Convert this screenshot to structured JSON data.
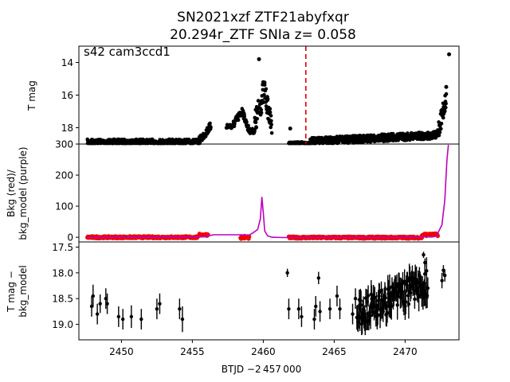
{
  "figure": {
    "title_line1": "SN2021xzf  ZTF21abyfxqr",
    "title_line2": "20.294r_ZTF SNIa z= 0.058",
    "annotation": "s42 cam3ccd1",
    "xlabel": "BTJD −2 457 000"
  },
  "colors": {
    "data": "#000000",
    "bkg": "#ff0000",
    "model": "#bf00bf",
    "marker": "#dd0000"
  },
  "chart_data": [
    {
      "type": "scatter",
      "name": "tmag_panel",
      "ylabel": "T mag",
      "xlim": [
        2447.0,
        2473.8
      ],
      "ylim": [
        19.0,
        13.0
      ],
      "y_inverted": true,
      "xticks": [
        2450,
        2455,
        2460,
        2465,
        2470
      ],
      "yticks": [
        14,
        16,
        18
      ],
      "vertical_marker_x": 2463.0,
      "segments": [
        {
          "x_start": 2447.6,
          "x_end": 2455.5,
          "y_base": 18.88,
          "y_spread": 0.35
        },
        {
          "x_start": 2455.5,
          "x_end": 2456.3,
          "y_start": 18.8,
          "y_end": 17.9,
          "y_spread": 0.5
        },
        {
          "x_start": 2457.4,
          "x_end": 2457.9,
          "y_base": 17.9,
          "y_spread": 0.3
        },
        {
          "x_start": 2457.9,
          "x_end": 2458.6,
          "y_start": 17.8,
          "y_end": 16.9,
          "y_spread": 0.5
        },
        {
          "x_start": 2458.6,
          "x_end": 2459.0,
          "y_start": 17.2,
          "y_end": 18.2,
          "y_spread": 0.4
        },
        {
          "x_start": 2459.0,
          "x_end": 2459.4,
          "y_base": 18.2,
          "y_spread": 0.3
        },
        {
          "x_start": 2459.4,
          "x_end": 2460.1,
          "y_start": 17.8,
          "y_end": 15.6,
          "y_spread": 1.6
        },
        {
          "x_start": 2460.1,
          "x_end": 2460.6,
          "y_start": 15.8,
          "y_end": 18.0,
          "y_spread": 1.2
        },
        {
          "x_start": 2461.8,
          "x_end": 2463.3,
          "y_base": 18.95,
          "y_spread": 0.15
        },
        {
          "x_start": 2463.3,
          "x_end": 2472.3,
          "y_start": 18.85,
          "y_end": 18.45,
          "y_spread": 0.45
        },
        {
          "x_start": 2472.3,
          "x_end": 2472.9,
          "y_start": 18.3,
          "y_end": 16.2,
          "y_spread": 1.2
        }
      ],
      "outliers": [
        {
          "x": 2459.7,
          "y": 13.8
        },
        {
          "x": 2461.9,
          "y": 18.05
        },
        {
          "x": 2472.9,
          "y": 15.5
        },
        {
          "x": 2473.1,
          "y": 13.5
        }
      ]
    },
    {
      "type": "line",
      "name": "background_panel",
      "ylabel_line1": "Bkg (red)/",
      "ylabel_line2": "bkg_model (purple)",
      "xlim": [
        2447.0,
        2473.8
      ],
      "ylim": [
        -15,
        300
      ],
      "yticks": [
        0,
        100,
        200,
        300
      ],
      "series": [
        {
          "name": "bkg_model",
          "x": [
            2447.6,
            2452.0,
            2455.0,
            2455.8,
            2456.5,
            2457.5,
            2458.2,
            2459.0,
            2459.3,
            2459.6,
            2459.8,
            2459.9,
            2460.0,
            2460.1,
            2460.3,
            2460.6,
            2461.5,
            2465.0,
            2470.0,
            2472.2,
            2472.6,
            2472.8,
            2472.95,
            2473.05
          ],
          "values": [
            -1,
            0,
            1,
            2,
            8,
            8,
            8,
            7,
            15,
            25,
            60,
            130,
            80,
            20,
            5,
            0,
            -1,
            -1,
            -1,
            3,
            40,
            120,
            250,
            310
          ]
        }
      ],
      "bkg_points": {
        "segments": [
          {
            "x_start": 2447.6,
            "x_end": 2455.4,
            "y_base": 0,
            "y_spread": 6
          },
          {
            "x_start": 2455.5,
            "x_end": 2456.1,
            "y_base": 8,
            "y_spread": 6
          },
          {
            "x_start": 2458.4,
            "x_end": 2459.0,
            "y_base": 0,
            "y_spread": 10
          },
          {
            "x_start": 2461.8,
            "x_end": 2471.2,
            "y_base": -1,
            "y_spread": 6
          },
          {
            "x_start": 2471.2,
            "x_end": 2472.3,
            "y_base": 8,
            "y_spread": 8
          }
        ]
      }
    },
    {
      "type": "scatter",
      "name": "diff_panel",
      "ylabel_line1": "T mag −",
      "ylabel_line2": "bkg_model",
      "xlim": [
        2447.0,
        2473.8
      ],
      "ylim": [
        19.3,
        17.4
      ],
      "y_inverted": true,
      "yticks": [
        17.5,
        18.0,
        18.5,
        19.0
      ],
      "points": [
        {
          "x": 2447.9,
          "y": 18.65,
          "err": 0.2
        },
        {
          "x": 2448.0,
          "y": 18.45,
          "err": 0.22
        },
        {
          "x": 2448.3,
          "y": 18.8,
          "err": 0.2
        },
        {
          "x": 2448.5,
          "y": 18.6,
          "err": 0.18
        },
        {
          "x": 2448.9,
          "y": 18.5,
          "err": 0.2
        },
        {
          "x": 2449.0,
          "y": 18.6,
          "err": 0.2
        },
        {
          "x": 2449.8,
          "y": 18.85,
          "err": 0.2
        },
        {
          "x": 2450.1,
          "y": 18.9,
          "err": 0.2
        },
        {
          "x": 2450.7,
          "y": 18.85,
          "err": 0.22
        },
        {
          "x": 2451.4,
          "y": 18.9,
          "err": 0.2
        },
        {
          "x": 2452.5,
          "y": 18.7,
          "err": 0.2
        },
        {
          "x": 2452.7,
          "y": 18.6,
          "err": 0.2
        },
        {
          "x": 2454.1,
          "y": 18.7,
          "err": 0.2
        },
        {
          "x": 2454.3,
          "y": 18.9,
          "err": 0.25
        },
        {
          "x": 2461.7,
          "y": 18.0,
          "err": 0.08
        },
        {
          "x": 2461.8,
          "y": 18.7,
          "err": 0.2
        },
        {
          "x": 2462.5,
          "y": 18.7,
          "err": 0.2
        },
        {
          "x": 2462.7,
          "y": 18.85,
          "err": 0.2
        },
        {
          "x": 2463.6,
          "y": 18.9,
          "err": 0.2
        },
        {
          "x": 2463.7,
          "y": 18.65,
          "err": 0.2
        },
        {
          "x": 2463.9,
          "y": 18.1,
          "err": 0.12
        },
        {
          "x": 2464.0,
          "y": 18.75,
          "err": 0.2
        },
        {
          "x": 2464.7,
          "y": 18.7,
          "err": 0.2
        },
        {
          "x": 2465.2,
          "y": 18.45,
          "err": 0.2
        },
        {
          "x": 2465.4,
          "y": 18.7,
          "err": 0.2
        },
        {
          "x": 2466.3,
          "y": 18.8,
          "err": 0.2
        },
        {
          "x": 2466.5,
          "y": 18.5,
          "err": 0.2
        },
        {
          "x": 2471.3,
          "y": 17.65,
          "err": 0.06
        },
        {
          "x": 2471.4,
          "y": 17.8,
          "err": 0.08
        },
        {
          "x": 2472.6,
          "y": 18.15,
          "err": 0.15
        },
        {
          "x": 2472.7,
          "y": 17.95,
          "err": 0.1
        },
        {
          "x": 2472.8,
          "y": 18.05,
          "err": 0.12
        }
      ],
      "dense_cluster": {
        "x_start": 2466.6,
        "x_end": 2471.6,
        "y_start": 18.8,
        "y_end": 18.2,
        "y_spread": 0.55,
        "err": 0.22
      }
    }
  ]
}
